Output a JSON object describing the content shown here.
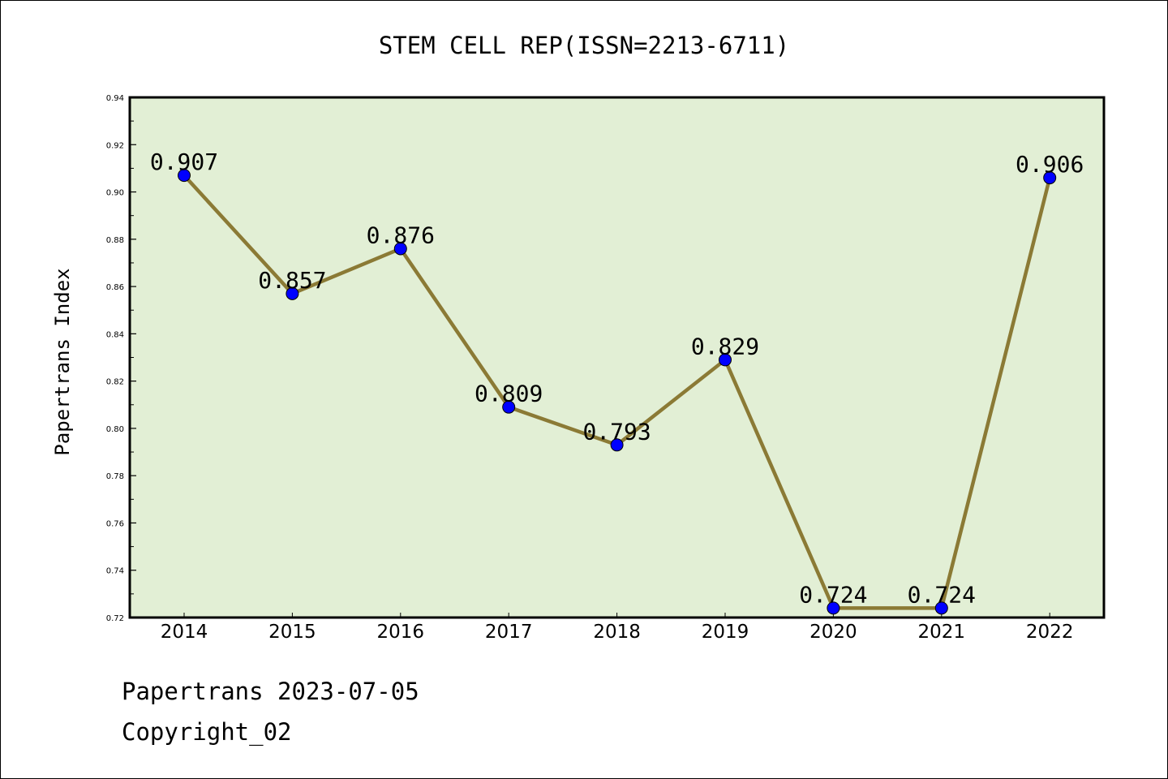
{
  "chart_data": {
    "type": "line",
    "title": "STEM CELL REP(ISSN=2213-6711)",
    "xlabel": "",
    "ylabel": "Papertrans Index",
    "categories": [
      "2014",
      "2015",
      "2016",
      "2017",
      "2018",
      "2019",
      "2020",
      "2021",
      "2022"
    ],
    "values": [
      0.907,
      0.857,
      0.876,
      0.809,
      0.793,
      0.829,
      0.724,
      0.724,
      0.906
    ],
    "data_labels": [
      "0.907",
      "0.857",
      "0.876",
      "0.809",
      "0.793",
      "0.829",
      "0.724",
      "0.724",
      "0.906"
    ],
    "ylim": [
      0.72,
      0.94
    ],
    "yticks": [
      "0.72",
      "0.74",
      "0.76",
      "0.78",
      "0.80",
      "0.82",
      "0.84",
      "0.86",
      "0.88",
      "0.90",
      "0.92",
      "0.94"
    ],
    "grid": false,
    "colors": {
      "line": "#8b7a35",
      "marker": "#0000ff",
      "background": "#e2efd5"
    }
  },
  "footer": {
    "line1": "Papertrans 2023-07-05",
    "line2": "Copyright_02"
  }
}
